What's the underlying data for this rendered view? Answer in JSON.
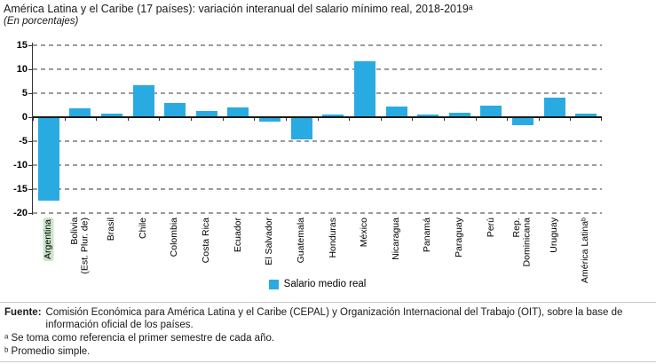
{
  "title": "América Latina y el Caribe (17 países): variación interanual del salario mínimo real, 2018-2019ᵃ",
  "subtitle": "(En porcentajes)",
  "legend": {
    "label": "Salario medio real",
    "color": "#29ABE2"
  },
  "chart_data": {
    "type": "bar",
    "categories": [
      "Argentina",
      "Bolivia\n(Est. Plur. de)",
      "Brasil",
      "Chile",
      "Colombia",
      "Costa Rica",
      "Ecuador",
      "El Salvador",
      "Guatemala",
      "Honduras",
      "México",
      "Nicaragua",
      "Panamá",
      "Paraguay",
      "Perú",
      "Rep.\nDominicana",
      "Uruguay",
      "América Latinaᵇ"
    ],
    "values": [
      -17.3,
      1.6,
      0.5,
      6.4,
      2.7,
      1.1,
      1.9,
      -0.7,
      -4.5,
      0.3,
      11.5,
      2.1,
      0.4,
      0.7,
      2.2,
      -1.5,
      3.8,
      0.6
    ],
    "series_name": "Salario medio real",
    "title": "América Latina y el Caribe (17 países): variación interanual del salario mínimo real, 2018-2019ᵃ",
    "xlabel": "",
    "ylabel": "En porcentajes",
    "ylim": [
      -20,
      15
    ],
    "yticks": [
      15,
      10,
      5,
      0,
      -5,
      -10,
      -15,
      -20
    ],
    "grid": "horizontal-dashed",
    "legend_position": "bottom",
    "bar_color": "#29ABE2",
    "highlighted_category": "Argentina",
    "highlight_color": "#cbe5cb"
  },
  "footer": {
    "source_label": "Fuente:",
    "source_text": "Comisión Económica para América Latina y el Caribe (CEPAL) y Organización Internacional del Trabajo (OIT), sobre la base de información oficial de los países.",
    "note_a": "ᵃ Se toma como referencia el primer semestre de cada año.",
    "note_b": "ᵇ Promedio simple."
  }
}
